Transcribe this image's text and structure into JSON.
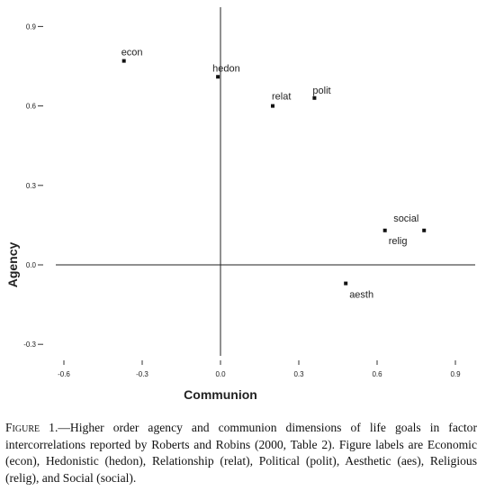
{
  "chart_data": {
    "type": "scatter",
    "xlabel": "Communion",
    "ylabel": "Agency",
    "xlim": [
      -0.6,
      0.9
    ],
    "ylim": [
      -0.3,
      0.9
    ],
    "x_ticks": [
      -0.6,
      -0.3,
      0.0,
      0.3,
      0.6,
      0.9
    ],
    "y_ticks": [
      0.9,
      0.6,
      0.3,
      0.0,
      -0.3
    ],
    "x_tick_labels": [
      "-0.6",
      "-0.3",
      "0.0",
      "0.3",
      "0.6",
      "0.9"
    ],
    "y_tick_labels": [
      "0.9",
      "0.6",
      "0.3",
      "0.0",
      "-0.3"
    ],
    "points": [
      {
        "label": "econ",
        "x": -0.37,
        "y": 0.77
      },
      {
        "label": "hedon",
        "x": -0.01,
        "y": 0.71
      },
      {
        "label": "relat",
        "x": 0.2,
        "y": 0.6
      },
      {
        "label": "polit",
        "x": 0.36,
        "y": 0.63
      },
      {
        "label": "social",
        "x": 0.78,
        "y": 0.13
      },
      {
        "label": "relig",
        "x": 0.63,
        "y": 0.13
      },
      {
        "label": "aesth",
        "x": 0.48,
        "y": -0.07
      }
    ],
    "grid": false
  },
  "caption": {
    "figure_label": "Figure 1",
    "text": ".—Higher order agency and communion dimensions of life goals in factor intercorrelations reported by Roberts and Robins (2000, Table 2). Figure labels are Economic (econ), Hedonistic (hedon), Relationship (relat), Political (polit), Aesthetic (aes), Religious (relig), and Social (social)."
  }
}
